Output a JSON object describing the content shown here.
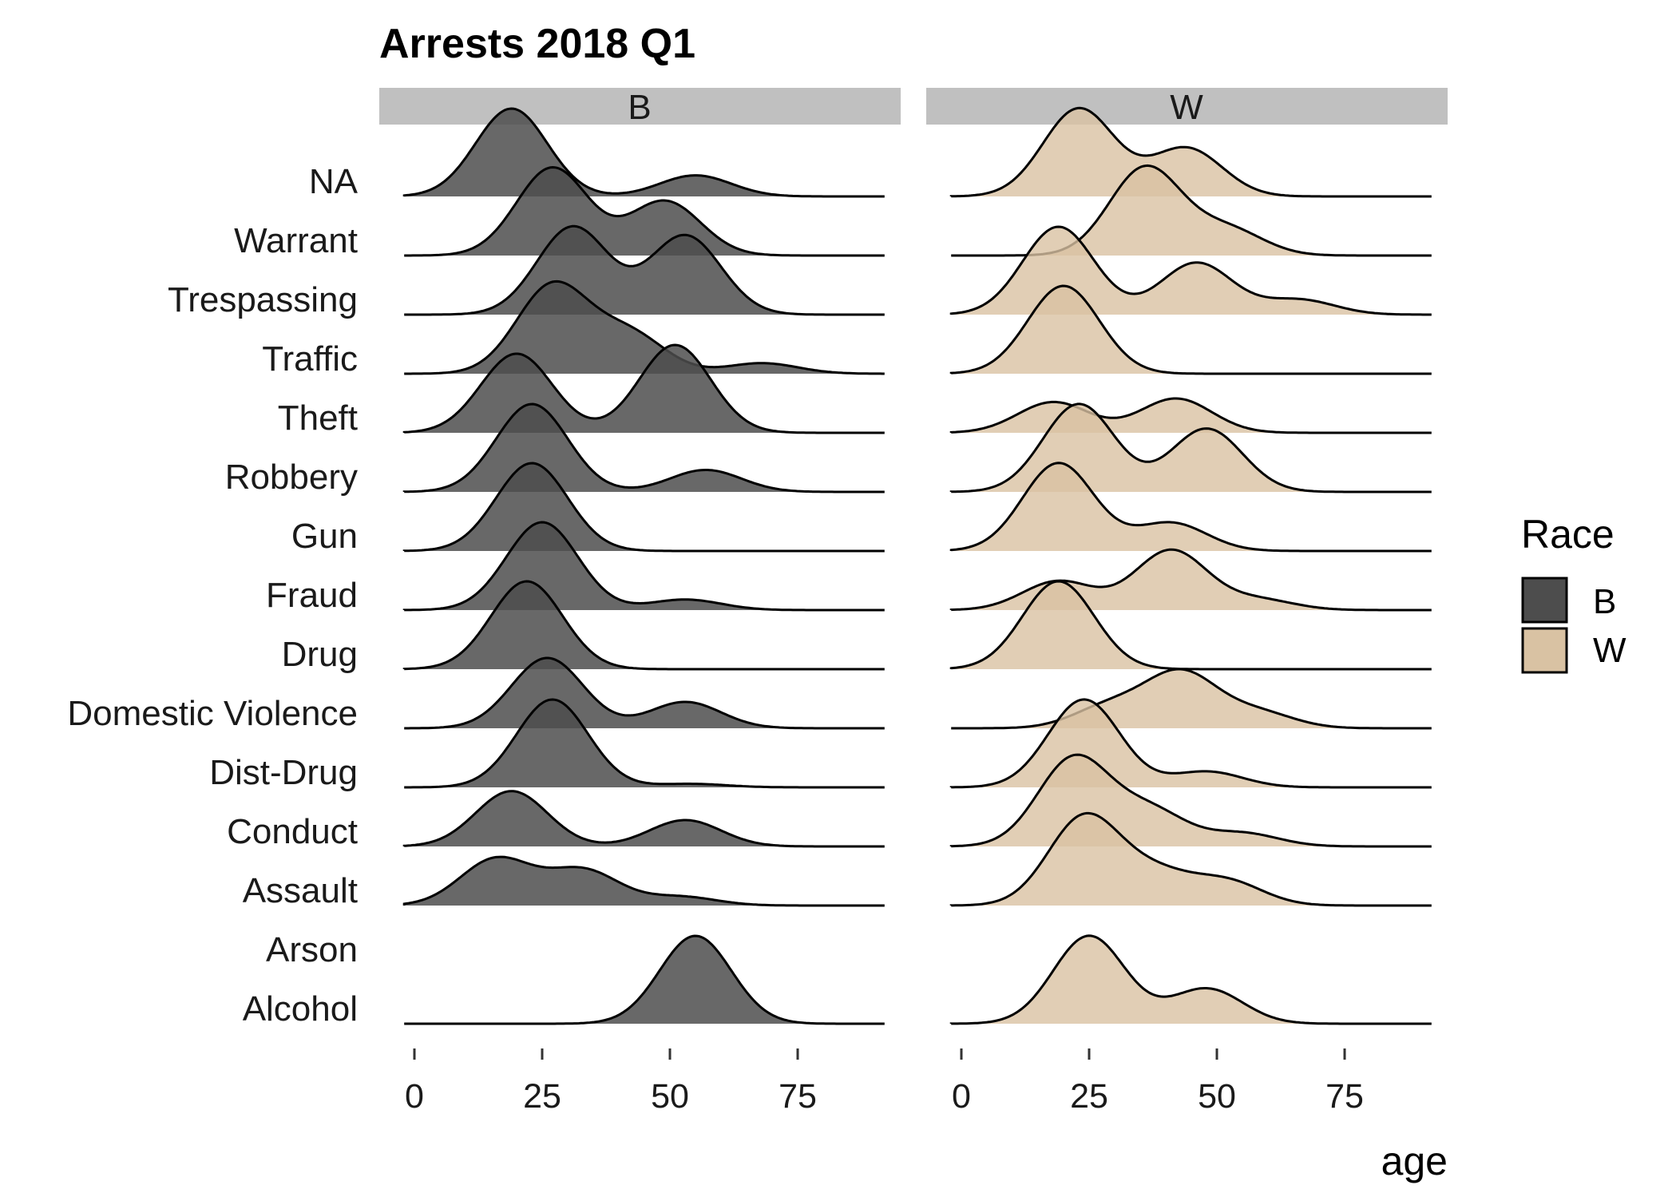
{
  "chart_data": {
    "type": "ridgeline",
    "title": "Arrests 2018 Q1",
    "xlabel": "age",
    "ylabel": "",
    "xlim": [
      -5,
      95
    ],
    "x_ticks": [
      0,
      25,
      50,
      75
    ],
    "x_tick_labels": [
      "0",
      "25",
      "50",
      "75"
    ],
    "categories": [
      "NA",
      "Warrant",
      "Trespassing",
      "Traffic",
      "Theft",
      "Robbery",
      "Gun",
      "Fraud",
      "Drug",
      "Domestic Violence",
      "Dist-Drug",
      "Conduct",
      "Assault",
      "Arson",
      "Alcohol"
    ],
    "facets": [
      "B",
      "W"
    ],
    "legend": {
      "title": "Race",
      "position": "right",
      "entries": [
        {
          "label": "B",
          "color": "#4d4d4d"
        },
        {
          "label": "W",
          "color": "#d9c2a3"
        }
      ]
    },
    "grid": false,
    "density_peaks": {
      "B": {
        "NA": [
          [
            19,
            1.0
          ],
          [
            55,
            0.24
          ]
        ],
        "Warrant": [
          [
            27,
            1.0
          ],
          [
            49,
            0.62
          ]
        ],
        "Trespassing": [
          [
            31,
            1.0
          ],
          [
            53,
            0.9
          ]
        ],
        "Traffic": [
          [
            27,
            1.0
          ],
          [
            42,
            0.45
          ],
          [
            68,
            0.12
          ]
        ],
        "Theft": [
          [
            20,
            0.9
          ],
          [
            51,
            1.0
          ]
        ],
        "Robbery": [
          [
            23,
            1.0
          ],
          [
            57,
            0.25
          ]
        ],
        "Gun": [
          [
            23,
            1.0
          ]
        ],
        "Fraud": [
          [
            25,
            1.0
          ],
          [
            53,
            0.12
          ]
        ],
        "Drug": [
          [
            22,
            1.0
          ]
        ],
        "Domestic Violence": [
          [
            26,
            0.8
          ],
          [
            53,
            0.3
          ]
        ],
        "Dist-Drug": [
          [
            27,
            1.0
          ],
          [
            54,
            0.04
          ]
        ],
        "Conduct": [
          [
            19,
            0.63
          ],
          [
            53,
            0.3
          ]
        ],
        "Assault": [
          [
            16,
            0.53
          ],
          [
            33,
            0.4
          ],
          [
            52,
            0.1
          ]
        ],
        "Arson": [],
        "Alcohol": [
          [
            55,
            1.0
          ]
        ]
      },
      "W": {
        "NA": [
          [
            23,
            1.0
          ],
          [
            44,
            0.55
          ]
        ],
        "Warrant": [
          [
            36,
            1.0
          ],
          [
            52,
            0.3
          ]
        ],
        "Trespassing": [
          [
            19,
            1.0
          ],
          [
            46,
            0.59
          ],
          [
            66,
            0.17
          ]
        ],
        "Traffic": [
          [
            20,
            1.0
          ]
        ],
        "Theft": [
          [
            18,
            0.35
          ],
          [
            42,
            0.39
          ]
        ],
        "Robbery": [
          [
            23,
            1.0
          ],
          [
            48,
            0.72
          ]
        ],
        "Gun": [
          [
            19,
            1.0
          ],
          [
            41,
            0.32
          ]
        ],
        "Fraud": [
          [
            19,
            0.33
          ],
          [
            41,
            0.68
          ],
          [
            58,
            0.12
          ]
        ],
        "Drug": [
          [
            19,
            1.0
          ]
        ],
        "Domestic Violence": [
          [
            29,
            0.25
          ],
          [
            43,
            0.62
          ],
          [
            58,
            0.18
          ]
        ],
        "Dist-Drug": [
          [
            24,
            1.0
          ],
          [
            48,
            0.18
          ]
        ],
        "Conduct": [
          [
            22,
            1.0
          ],
          [
            37,
            0.4
          ],
          [
            55,
            0.15
          ]
        ],
        "Assault": [
          [
            24,
            1.0
          ],
          [
            38,
            0.34
          ],
          [
            52,
            0.27
          ]
        ],
        "Arson": [],
        "Alcohol": [
          [
            25,
            1.0
          ],
          [
            48,
            0.4
          ]
        ]
      }
    }
  }
}
